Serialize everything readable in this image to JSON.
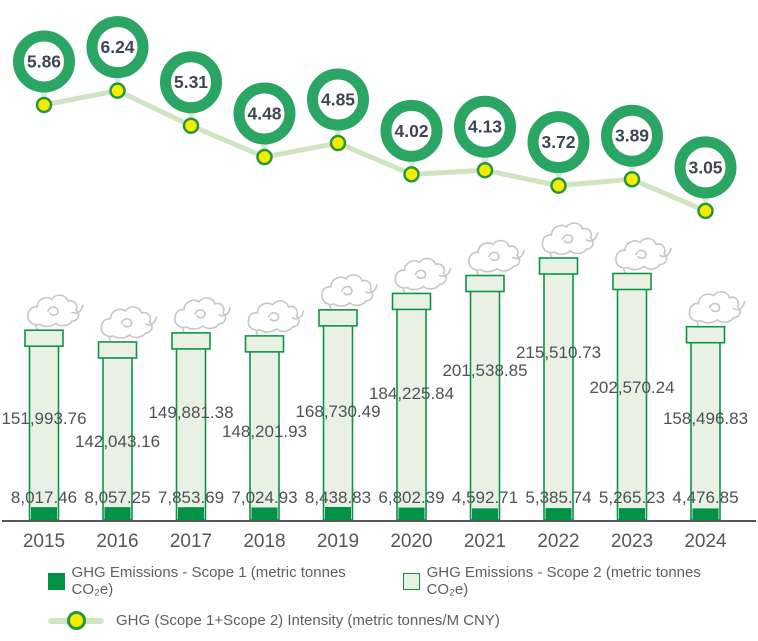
{
  "chart_data": {
    "type": "bar",
    "subtype": "stacked-chimney-bars-with-intensity-line",
    "title": "",
    "xlabel": "",
    "ylabel": "",
    "grid": false,
    "legend_position": "bottom",
    "categories": [
      "2015",
      "2016",
      "2017",
      "2018",
      "2019",
      "2020",
      "2021",
      "2022",
      "2023",
      "2024"
    ],
    "series": [
      {
        "name": "GHG Emissions - Scope 1 (metric tonnes CO₂e)",
        "type": "bar",
        "values": [
          8017.46,
          8057.25,
          7853.69,
          7024.93,
          8438.83,
          6802.39,
          4592.71,
          5385.74,
          5265.23,
          4476.85
        ],
        "labels": [
          "8,017.46",
          "8,057.25",
          "7,853.69",
          "7,024.93",
          "8,438.83",
          "6,802.39",
          "4,592.71",
          "5,385.74",
          "5,265.23",
          "4,476.85"
        ],
        "color": "#009245"
      },
      {
        "name": "GHG Emissions - Scope 2 (metric tonnes CO₂e)",
        "type": "bar",
        "values": [
          151993.76,
          142043.16,
          149881.38,
          148201.93,
          168730.49,
          184225.84,
          201538.85,
          215510.73,
          202570.24,
          158496.83
        ],
        "labels": [
          "151,993.76",
          "142,043.16",
          "149,881.38",
          "148,201.93",
          "168,730.49",
          "184,225.84",
          "201,538.85",
          "215,510.73",
          "202,570.24",
          "158,496.83"
        ],
        "color": "#e8f1e3"
      },
      {
        "name": "GHG (Scope 1+Scope 2) Intensity (metric tonnes/M CNY)",
        "type": "line",
        "values": [
          5.86,
          6.24,
          5.31,
          4.48,
          4.85,
          4.02,
          4.13,
          3.72,
          3.89,
          3.05
        ],
        "labels": [
          "5.86",
          "6.24",
          "5.31",
          "4.48",
          "4.85",
          "4.02",
          "4.13",
          "3.72",
          "3.89",
          "3.05"
        ],
        "color": "#cfe4c0"
      }
    ]
  },
  "legend": {
    "scope1_label": "GHG Emissions - Scope 1 (metric tonnes CO₂e)",
    "scope2_label": "GHG Emissions - Scope 2 (metric tonnes CO₂e)",
    "intensity_label": "GHG (Scope 1+Scope 2) Intensity (metric tonnes/M CNY)"
  },
  "colors": {
    "scope1_green": "#009245",
    "scope2_fill": "#e8f1e3",
    "bar_border": "#0f9347",
    "ring_green": "#2ba564",
    "pointer_green": "#d6e9da",
    "line_green": "#cfe4c0",
    "dot_yellow": "#f7ec00",
    "dot_border": "#27963f",
    "smoke_gray": "#c6c6c6",
    "axis_gray": "#55565a",
    "value_text": "#4b525b",
    "year_text": "#54585d",
    "badge_text": "#3d4754",
    "legend_text": "#5a6163"
  }
}
